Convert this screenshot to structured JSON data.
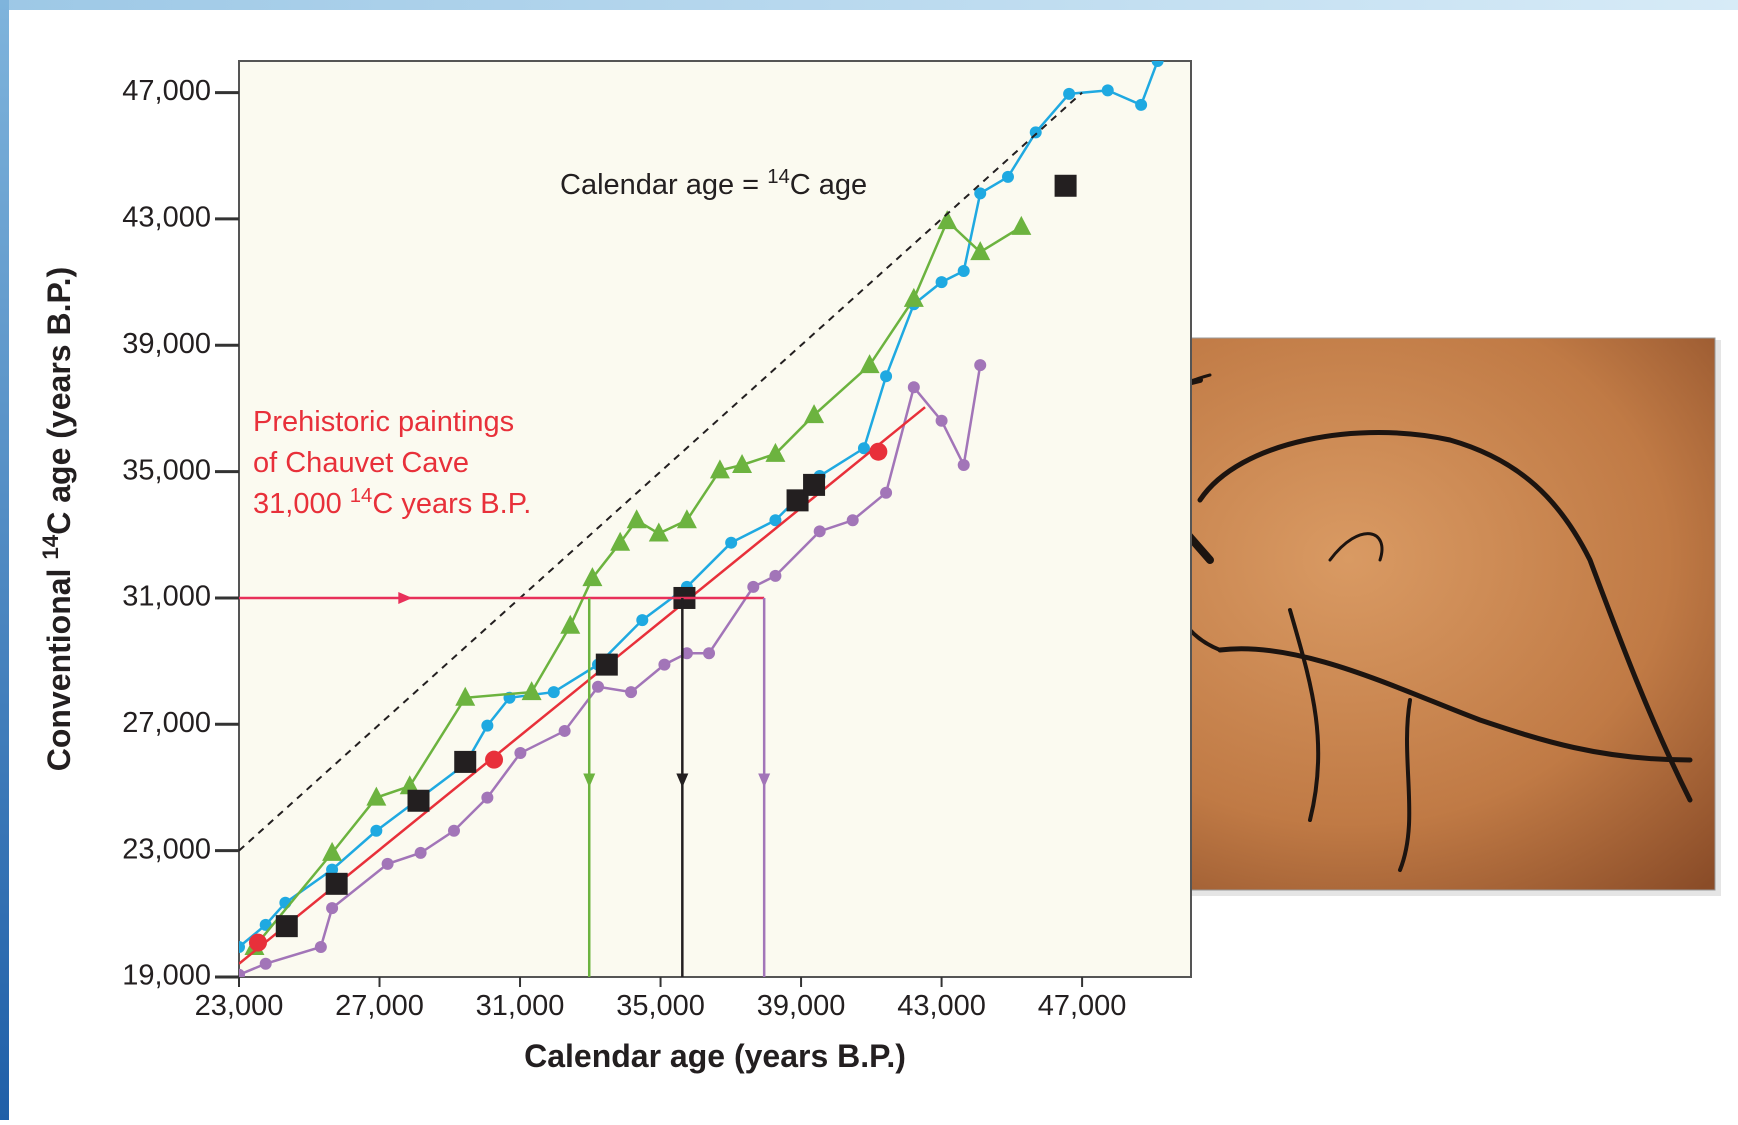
{
  "chart_data": {
    "type": "line",
    "xlabel": "Calendar age (years B.P.)",
    "ylabel_parts": [
      "Conventional ",
      "14",
      "C age (years B.P.)"
    ],
    "xlim": [
      23000,
      50100
    ],
    "ylim": [
      19000,
      48000
    ],
    "xticks": [
      {
        "value": 23000,
        "label": "23,000"
      },
      {
        "value": 27000,
        "label": "27,000"
      },
      {
        "value": 31000,
        "label": "31,000"
      },
      {
        "value": 35000,
        "label": "35,000"
      },
      {
        "value": 39000,
        "label": "39,000"
      },
      {
        "value": 43000,
        "label": "43,000"
      },
      {
        "value": 47000,
        "label": "47,000"
      }
    ],
    "yticks": [
      {
        "value": 19000,
        "label": "19,000"
      },
      {
        "value": 23000,
        "label": "23,000"
      },
      {
        "value": 27000,
        "label": "27,000"
      },
      {
        "value": 31000,
        "label": "31,000"
      },
      {
        "value": 35000,
        "label": "35,000"
      },
      {
        "value": 39000,
        "label": "39,000"
      },
      {
        "value": 43000,
        "label": "43,000"
      },
      {
        "value": 47000,
        "label": "47,000"
      }
    ],
    "series": [
      {
        "color": "#1fa9e1",
        "marker": "circle",
        "line": true,
        "x": [
          23000,
          23760,
          24320,
          25650,
          26910,
          28170,
          29440,
          30070,
          30700,
          31960,
          33220,
          34480,
          35750,
          37010,
          38270,
          39530,
          40790,
          41420,
          42210,
          43000,
          43630,
          44100,
          44890,
          45680,
          46630,
          47730,
          48680,
          49150
        ],
        "values": [
          19950,
          20650,
          21350,
          22400,
          23630,
          24680,
          25740,
          26960,
          27840,
          28020,
          28890,
          30300,
          31350,
          32750,
          33460,
          34860,
          35740,
          38020,
          40300,
          41000,
          41350,
          43810,
          44330,
          45740,
          46960,
          47070,
          46610,
          48000
        ]
      },
      {
        "color": "#6cb33f",
        "marker": "triangle",
        "line": true,
        "x": [
          23440,
          25650,
          26910,
          27860,
          29440,
          31330,
          32430,
          33060,
          33850,
          34320,
          34950,
          35750,
          36690,
          37320,
          38270,
          39370,
          40950,
          42210,
          43160,
          44100,
          45270
        ],
        "values": [
          19950,
          22930,
          24680,
          25040,
          27840,
          28020,
          30120,
          31630,
          32750,
          33460,
          33040,
          33460,
          35040,
          35210,
          35560,
          36790,
          38370,
          40470,
          42930,
          41950,
          42750
        ]
      },
      {
        "color": "#a275b8",
        "marker": "circle",
        "line": true,
        "x": [
          23000,
          23760,
          25330,
          25650,
          27230,
          28170,
          29120,
          30070,
          31010,
          32270,
          33220,
          34160,
          35110,
          35750,
          36380,
          37640,
          38270,
          39530,
          40470,
          41420,
          42210,
          43000,
          43630,
          44100
        ],
        "values": [
          19070,
          19420,
          19950,
          21180,
          22580,
          22930,
          23630,
          24680,
          26090,
          26790,
          28190,
          28020,
          28890,
          29250,
          29250,
          31350,
          31700,
          33110,
          33460,
          34330,
          37670,
          36610,
          35210,
          38370
        ]
      },
      {
        "color": "#e8303a",
        "marker": null,
        "line": true,
        "x": [
          23000,
          42530
        ],
        "values": [
          19420,
          37040
        ]
      },
      {
        "color": "#231f20",
        "marker": "square",
        "line": false,
        "x": [
          24360,
          25780,
          28110,
          29440,
          33470,
          35680,
          38900,
          39370,
          46530
        ],
        "values": [
          20610,
          21950,
          24580,
          25810,
          28890,
          31000,
          34090,
          34580,
          44050
        ]
      },
      {
        "color": "#e8303a",
        "marker": "circle",
        "line": false,
        "x": [
          23540,
          30260,
          41200
        ],
        "values": [
          20090,
          25880,
          35630
        ]
      },
      {
        "color": "#231f20",
        "marker": null,
        "line": true,
        "dashed": true,
        "x": [
          23000,
          47000
        ],
        "values": [
          23000,
          47000
        ]
      }
    ],
    "arrows": [
      {
        "color": "#e8305a",
        "x": [
          23000,
          37950
        ],
        "values": [
          31000,
          31000
        ]
      },
      {
        "color": "#6cb33f",
        "x": [
          32970,
          32970
        ],
        "values": [
          31000,
          19000
        ]
      },
      {
        "color": "#231f20",
        "x": [
          35620,
          35620
        ],
        "values": [
          31000,
          19000
        ]
      },
      {
        "color": "#a275b8",
        "x": [
          37950,
          37950
        ],
        "values": [
          31000,
          19000
        ]
      }
    ],
    "annotations": [
      {
        "color": "#231f20",
        "lines": [
          [
            "Calendar age = ",
            "14",
            "C age"
          ]
        ]
      },
      {
        "color": "#e8303a",
        "lines": [
          [
            "Prehistoric  paintings"
          ],
          [
            "of Chauvet Cave"
          ],
          [
            "31,000 ",
            "14",
            "C years B.P."
          ]
        ]
      }
    ]
  }
}
